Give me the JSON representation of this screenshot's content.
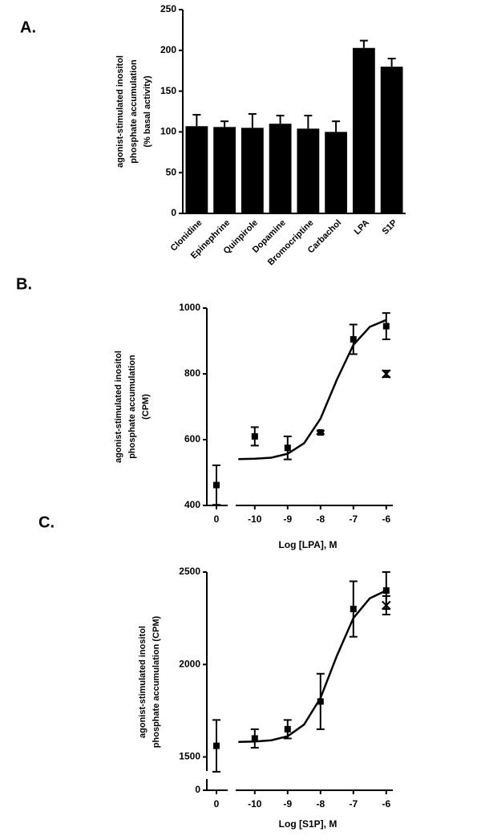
{
  "chart_data": [
    {
      "type": "bar",
      "panel": "A.",
      "ylabel": [
        "agonist-stimulated inositol",
        "phosphate accumulation",
        "(% basal activity)"
      ],
      "categories": [
        "Clonidine",
        "Epinephrine",
        "Quinpirole",
        "Dopamine",
        "Bromocriptine",
        "Carbachol",
        "LPA",
        "S1P"
      ],
      "values": [
        107,
        106,
        105,
        110,
        104,
        100,
        203,
        180
      ],
      "errors": [
        14,
        7,
        17,
        10,
        16,
        13,
        9,
        10
      ],
      "color": "#000000",
      "ylim": [
        0,
        250
      ],
      "yticks": [
        0,
        50,
        100,
        150,
        200,
        250
      ]
    },
    {
      "type": "scatter",
      "panel": "B.",
      "ylabel": [
        "agonist-stimulated inositol",
        "phosphate accumulation",
        "(CPM)"
      ],
      "xlabel": "Log [LPA], M",
      "control": {
        "label": "0",
        "value": 462,
        "error": 60
      },
      "x": [
        -10,
        -9,
        -8,
        -7,
        -6
      ],
      "values": [
        610,
        575,
        622,
        905,
        945
      ],
      "errors": [
        28,
        35,
        5,
        45,
        40
      ],
      "extra": {
        "x": -6,
        "value": 800,
        "error": 10
      },
      "fit": {
        "x": [
          -10.5,
          -10,
          -9.5,
          -9,
          -8.5,
          -8,
          -7.5,
          -7,
          -6.5,
          -6
        ],
        "values": [
          541,
          542,
          545,
          557,
          589,
          664,
          783,
          888,
          943,
          964
        ]
      },
      "xlim": [
        -10.8,
        -5.8
      ],
      "xticks": [
        -10,
        -9,
        -8,
        -7,
        -6
      ],
      "ylim": [
        400,
        1000
      ],
      "yticks": [
        400,
        600,
        800,
        1000
      ],
      "color": "#000000"
    },
    {
      "type": "scatter",
      "panel": "C.",
      "ylabel": [
        "agonist-stimulated inositol",
        "phosphate accumulation (CPM)"
      ],
      "xlabel": "Log [S1P], M",
      "control": {
        "label": "0",
        "value": 1560,
        "error": 140
      },
      "x": [
        -10,
        -9,
        -8,
        -7,
        -6
      ],
      "values": [
        1600,
        1650,
        1800,
        2300,
        2400
      ],
      "errors": [
        50,
        50,
        150,
        150,
        100
      ],
      "extra": {
        "x": -6,
        "value": 2320,
        "error": 50
      },
      "fit": {
        "x": [
          -10.5,
          -10,
          -9.5,
          -9,
          -8.5,
          -8,
          -7.5,
          -7,
          -6.5,
          -6
        ],
        "values": [
          1581,
          1583,
          1590,
          1612,
          1675,
          1819,
          2048,
          2251,
          2358,
          2400
        ]
      },
      "xlim": [
        -10.8,
        -5.8
      ],
      "xticks": [
        -10,
        -9,
        -8,
        -7,
        -6
      ],
      "ylim": [
        1450,
        2500
      ],
      "yticks": [
        1500,
        2000,
        2500
      ],
      "ybreak_tick": 0,
      "color": "#000000"
    }
  ]
}
